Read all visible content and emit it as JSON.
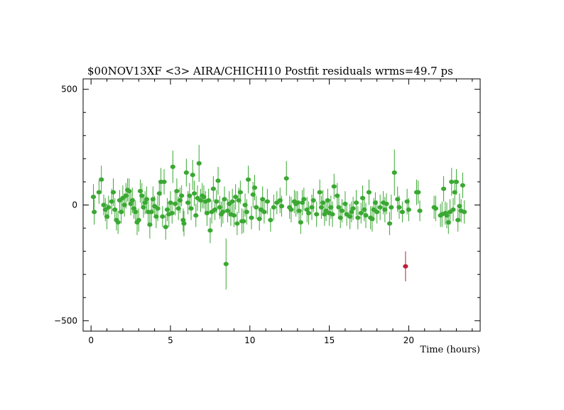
{
  "chart_data": {
    "type": "scatter",
    "title": "$00NOV13XF <3> AIRA/CHICHI10 Postfit residuals wrms=49.7  ps",
    "xlabel": "Time (hours)",
    "ylabel": "",
    "xlim": [
      -0.5,
      24.5
    ],
    "ylim": [
      -545,
      545
    ],
    "xticks": [
      0,
      5,
      10,
      15,
      20
    ],
    "yticks": [
      -500,
      0,
      500
    ],
    "grid": false,
    "series": [
      {
        "color": "#3aa832",
        "errorbars": true,
        "points": [
          {
            "x": 0.15,
            "y": 35,
            "e": 55
          },
          {
            "x": 0.2,
            "y": -30,
            "e": 55
          },
          {
            "x": 0.5,
            "y": 55,
            "e": 50
          },
          {
            "x": 0.65,
            "y": 110,
            "e": 60
          },
          {
            "x": 0.8,
            "y": 0,
            "e": 45
          },
          {
            "x": 0.9,
            "y": -20,
            "e": 50
          },
          {
            "x": 1.0,
            "y": -50,
            "e": 55
          },
          {
            "x": 1.1,
            "y": -10,
            "e": 50
          },
          {
            "x": 1.3,
            "y": 15,
            "e": 55
          },
          {
            "x": 1.4,
            "y": 55,
            "e": 60
          },
          {
            "x": 1.5,
            "y": -20,
            "e": 50
          },
          {
            "x": 1.6,
            "y": -65,
            "e": 45
          },
          {
            "x": 1.7,
            "y": -75,
            "e": 50
          },
          {
            "x": 1.8,
            "y": 20,
            "e": 45
          },
          {
            "x": 1.9,
            "y": -30,
            "e": 50
          },
          {
            "x": 2.0,
            "y": 30,
            "e": 55
          },
          {
            "x": 2.1,
            "y": 0,
            "e": 50
          },
          {
            "x": 2.2,
            "y": 40,
            "e": 55
          },
          {
            "x": 2.3,
            "y": 65,
            "e": 50
          },
          {
            "x": 2.4,
            "y": 60,
            "e": 55
          },
          {
            "x": 2.5,
            "y": 5,
            "e": 50
          },
          {
            "x": 2.6,
            "y": 20,
            "e": 55
          },
          {
            "x": 2.7,
            "y": -15,
            "e": 45
          },
          {
            "x": 2.8,
            "y": -30,
            "e": 50
          },
          {
            "x": 2.9,
            "y": -75,
            "e": 55
          },
          {
            "x": 3.0,
            "y": -65,
            "e": 50
          },
          {
            "x": 3.1,
            "y": 60,
            "e": 50
          },
          {
            "x": 3.2,
            "y": 40,
            "e": 55
          },
          {
            "x": 3.3,
            "y": -10,
            "e": 45
          },
          {
            "x": 3.4,
            "y": 10,
            "e": 50
          },
          {
            "x": 3.5,
            "y": 25,
            "e": 55
          },
          {
            "x": 3.6,
            "y": -30,
            "e": 50
          },
          {
            "x": 3.7,
            "y": -85,
            "e": 60
          },
          {
            "x": 3.8,
            "y": -30,
            "e": 50
          },
          {
            "x": 3.9,
            "y": 25,
            "e": 55
          },
          {
            "x": 4.0,
            "y": -5,
            "e": 45
          },
          {
            "x": 4.1,
            "y": -50,
            "e": 50
          },
          {
            "x": 4.2,
            "y": -15,
            "e": 55
          },
          {
            "x": 4.3,
            "y": 50,
            "e": 55
          },
          {
            "x": 4.4,
            "y": 100,
            "e": 60
          },
          {
            "x": 4.5,
            "y": -50,
            "e": 45
          },
          {
            "x": 4.6,
            "y": 100,
            "e": 55
          },
          {
            "x": 4.7,
            "y": -95,
            "e": 55
          },
          {
            "x": 4.8,
            "y": -20,
            "e": 50
          },
          {
            "x": 4.9,
            "y": -40,
            "e": 55
          },
          {
            "x": 5.0,
            "y": 10,
            "e": 50
          },
          {
            "x": 5.1,
            "y": -35,
            "e": 45
          },
          {
            "x": 5.15,
            "y": 165,
            "e": 70
          },
          {
            "x": 5.3,
            "y": 5,
            "e": 50
          },
          {
            "x": 5.4,
            "y": 60,
            "e": 55
          },
          {
            "x": 5.5,
            "y": -15,
            "e": 50
          },
          {
            "x": 5.6,
            "y": 20,
            "e": 55
          },
          {
            "x": 5.7,
            "y": 40,
            "e": 45
          },
          {
            "x": 5.8,
            "y": -65,
            "e": 50
          },
          {
            "x": 5.85,
            "y": -80,
            "e": 55
          },
          {
            "x": 6.0,
            "y": 140,
            "e": 60
          },
          {
            "x": 6.1,
            "y": 10,
            "e": 50
          },
          {
            "x": 6.2,
            "y": 40,
            "e": 55
          },
          {
            "x": 6.3,
            "y": -15,
            "e": 50
          },
          {
            "x": 6.4,
            "y": 130,
            "e": 65
          },
          {
            "x": 6.5,
            "y": 50,
            "e": 55
          },
          {
            "x": 6.6,
            "y": -45,
            "e": 50
          },
          {
            "x": 6.7,
            "y": 30,
            "e": 55
          },
          {
            "x": 6.8,
            "y": 180,
            "e": 80
          },
          {
            "x": 6.9,
            "y": 20,
            "e": 50
          },
          {
            "x": 7.0,
            "y": 40,
            "e": 55
          },
          {
            "x": 7.1,
            "y": 35,
            "e": 50
          },
          {
            "x": 7.2,
            "y": 15,
            "e": 45
          },
          {
            "x": 7.3,
            "y": -35,
            "e": 55
          },
          {
            "x": 7.4,
            "y": 20,
            "e": 50
          },
          {
            "x": 7.5,
            "y": -110,
            "e": 55
          },
          {
            "x": 7.6,
            "y": -30,
            "e": 50
          },
          {
            "x": 7.7,
            "y": 70,
            "e": 55
          },
          {
            "x": 7.8,
            "y": -20,
            "e": 45
          },
          {
            "x": 7.9,
            "y": 15,
            "e": 50
          },
          {
            "x": 8.0,
            "y": 105,
            "e": 60
          },
          {
            "x": 8.1,
            "y": -10,
            "e": 50
          },
          {
            "x": 8.2,
            "y": -40,
            "e": 55
          },
          {
            "x": 8.3,
            "y": -30,
            "e": 50
          },
          {
            "x": 8.4,
            "y": 25,
            "e": 55
          },
          {
            "x": 8.5,
            "y": -255,
            "e": 110
          },
          {
            "x": 8.6,
            "y": -25,
            "e": 50
          },
          {
            "x": 8.7,
            "y": 5,
            "e": 55
          },
          {
            "x": 8.8,
            "y": -40,
            "e": 50
          },
          {
            "x": 8.9,
            "y": 15,
            "e": 55
          },
          {
            "x": 9.0,
            "y": -45,
            "e": 50
          },
          {
            "x": 9.1,
            "y": 35,
            "e": 55
          },
          {
            "x": 9.2,
            "y": -80,
            "e": 50
          },
          {
            "x": 9.3,
            "y": 20,
            "e": 55
          },
          {
            "x": 9.4,
            "y": 55,
            "e": 50
          },
          {
            "x": 9.5,
            "y": -70,
            "e": 55
          },
          {
            "x": 9.6,
            "y": -70,
            "e": 50
          },
          {
            "x": 9.7,
            "y": 0,
            "e": 50
          },
          {
            "x": 9.8,
            "y": -30,
            "e": 55
          },
          {
            "x": 9.9,
            "y": 110,
            "e": 60
          },
          {
            "x": 10.1,
            "y": -55,
            "e": 50
          },
          {
            "x": 10.2,
            "y": 45,
            "e": 55
          },
          {
            "x": 10.3,
            "y": 75,
            "e": 55
          },
          {
            "x": 10.4,
            "y": -10,
            "e": 50
          },
          {
            "x": 10.6,
            "y": -60,
            "e": 50
          },
          {
            "x": 10.7,
            "y": -20,
            "e": 45
          },
          {
            "x": 10.8,
            "y": 25,
            "e": 55
          },
          {
            "x": 10.9,
            "y": -30,
            "e": 50
          },
          {
            "x": 11.1,
            "y": 15,
            "e": 55
          },
          {
            "x": 11.3,
            "y": -65,
            "e": 50
          },
          {
            "x": 11.5,
            "y": -10,
            "e": 55
          },
          {
            "x": 11.7,
            "y": 10,
            "e": 50
          },
          {
            "x": 11.9,
            "y": 20,
            "e": 55
          },
          {
            "x": 12.0,
            "y": -5,
            "e": 45
          },
          {
            "x": 12.3,
            "y": 115,
            "e": 75
          },
          {
            "x": 12.5,
            "y": -10,
            "e": 50
          },
          {
            "x": 12.6,
            "y": -20,
            "e": 55
          },
          {
            "x": 12.8,
            "y": 15,
            "e": 50
          },
          {
            "x": 12.9,
            "y": 5,
            "e": 55
          },
          {
            "x": 13.0,
            "y": 10,
            "e": 50
          },
          {
            "x": 13.1,
            "y": -25,
            "e": 45
          },
          {
            "x": 13.2,
            "y": -75,
            "e": 50
          },
          {
            "x": 13.3,
            "y": 10,
            "e": 55
          },
          {
            "x": 13.4,
            "y": 25,
            "e": 50
          },
          {
            "x": 13.6,
            "y": -20,
            "e": 55
          },
          {
            "x": 13.7,
            "y": -35,
            "e": 50
          },
          {
            "x": 13.9,
            "y": -10,
            "e": 55
          },
          {
            "x": 14.0,
            "y": 20,
            "e": 50
          },
          {
            "x": 14.2,
            "y": -40,
            "e": 55
          },
          {
            "x": 14.4,
            "y": 55,
            "e": 55
          },
          {
            "x": 14.5,
            "y": -10,
            "e": 50
          },
          {
            "x": 14.6,
            "y": 10,
            "e": 55
          },
          {
            "x": 14.7,
            "y": -40,
            "e": 50
          },
          {
            "x": 14.8,
            "y": -25,
            "e": 45
          },
          {
            "x": 14.9,
            "y": 20,
            "e": 50
          },
          {
            "x": 15.0,
            "y": -35,
            "e": 55
          },
          {
            "x": 15.1,
            "y": -10,
            "e": 50
          },
          {
            "x": 15.2,
            "y": -40,
            "e": 55
          },
          {
            "x": 15.3,
            "y": 80,
            "e": 55
          },
          {
            "x": 15.5,
            "y": 40,
            "e": 55
          },
          {
            "x": 15.6,
            "y": -10,
            "e": 50
          },
          {
            "x": 15.7,
            "y": -55,
            "e": 45
          },
          {
            "x": 15.8,
            "y": -25,
            "e": 50
          },
          {
            "x": 16.0,
            "y": 5,
            "e": 55
          },
          {
            "x": 16.1,
            "y": -40,
            "e": 50
          },
          {
            "x": 16.3,
            "y": -50,
            "e": 55
          },
          {
            "x": 16.4,
            "y": -30,
            "e": 45
          },
          {
            "x": 16.5,
            "y": -15,
            "e": 50
          },
          {
            "x": 16.7,
            "y": 10,
            "e": 55
          },
          {
            "x": 16.8,
            "y": -55,
            "e": 50
          },
          {
            "x": 17.0,
            "y": -35,
            "e": 45
          },
          {
            "x": 17.1,
            "y": 30,
            "e": 55
          },
          {
            "x": 17.2,
            "y": -20,
            "e": 50
          },
          {
            "x": 17.3,
            "y": -45,
            "e": 55
          },
          {
            "x": 17.5,
            "y": 55,
            "e": 55
          },
          {
            "x": 17.6,
            "y": -55,
            "e": 50
          },
          {
            "x": 17.7,
            "y": -60,
            "e": 55
          },
          {
            "x": 17.8,
            "y": -20,
            "e": 50
          },
          {
            "x": 17.9,
            "y": 10,
            "e": 45
          },
          {
            "x": 18.0,
            "y": -30,
            "e": 50
          },
          {
            "x": 18.2,
            "y": -10,
            "e": 55
          },
          {
            "x": 18.4,
            "y": 10,
            "e": 50
          },
          {
            "x": 18.5,
            "y": -20,
            "e": 55
          },
          {
            "x": 18.6,
            "y": 5,
            "e": 45
          },
          {
            "x": 18.8,
            "y": -80,
            "e": 50
          },
          {
            "x": 18.9,
            "y": -10,
            "e": 55
          },
          {
            "x": 19.1,
            "y": 140,
            "e": 100
          },
          {
            "x": 19.3,
            "y": 25,
            "e": 55
          },
          {
            "x": 19.4,
            "y": -10,
            "e": 50
          },
          {
            "x": 19.6,
            "y": -30,
            "e": 45
          },
          {
            "x": 19.9,
            "y": 15,
            "e": 55
          },
          {
            "x": 20.0,
            "y": -20,
            "e": 50
          },
          {
            "x": 20.5,
            "y": 55,
            "e": 55
          },
          {
            "x": 20.6,
            "y": 55,
            "e": 50
          },
          {
            "x": 20.7,
            "y": -25,
            "e": 45
          },
          {
            "x": 21.6,
            "y": -10,
            "e": 50
          },
          {
            "x": 21.7,
            "y": -15,
            "e": 55
          },
          {
            "x": 22.0,
            "y": -45,
            "e": 50
          },
          {
            "x": 22.1,
            "y": -40,
            "e": 55
          },
          {
            "x": 22.2,
            "y": 70,
            "e": 55
          },
          {
            "x": 22.3,
            "y": -35,
            "e": 50
          },
          {
            "x": 22.4,
            "y": -45,
            "e": 55
          },
          {
            "x": 22.5,
            "y": -75,
            "e": 50
          },
          {
            "x": 22.6,
            "y": -30,
            "e": 55
          },
          {
            "x": 22.7,
            "y": 100,
            "e": 60
          },
          {
            "x": 22.8,
            "y": -20,
            "e": 50
          },
          {
            "x": 22.9,
            "y": 55,
            "e": 55
          },
          {
            "x": 23.0,
            "y": 100,
            "e": 55
          },
          {
            "x": 23.1,
            "y": -65,
            "e": 50
          },
          {
            "x": 23.2,
            "y": -5,
            "e": 55
          },
          {
            "x": 23.3,
            "y": -25,
            "e": 50
          },
          {
            "x": 23.4,
            "y": 85,
            "e": 55
          },
          {
            "x": 23.5,
            "y": -30,
            "e": 50
          }
        ]
      },
      {
        "color": "#b8203a",
        "errorbars": true,
        "points": [
          {
            "x": 19.8,
            "y": -265,
            "e": 65
          }
        ]
      }
    ]
  }
}
